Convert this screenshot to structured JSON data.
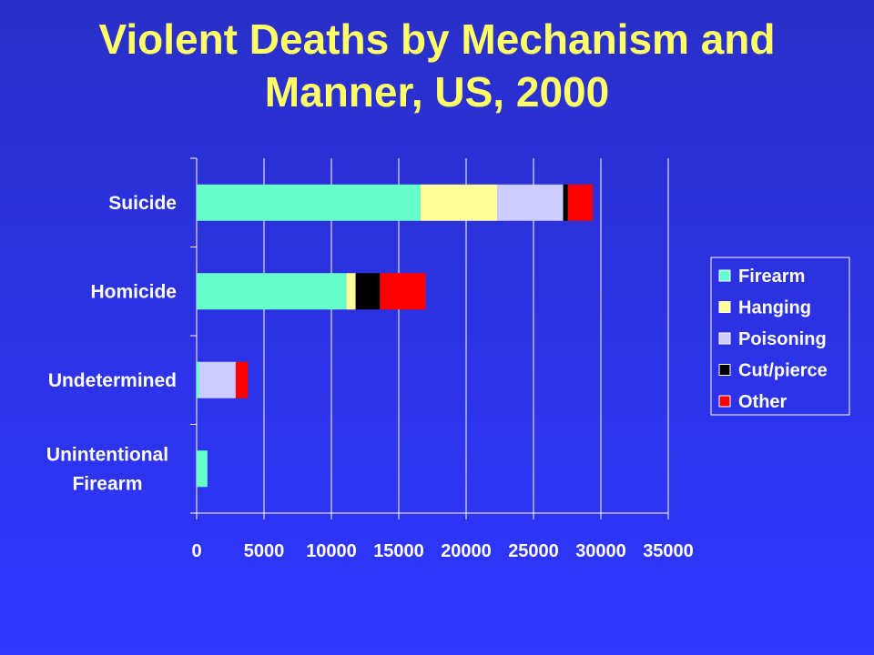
{
  "title": {
    "line1": "Violent Deaths by Mechanism and",
    "line2": "Manner, US, 2000"
  },
  "chart_data": {
    "type": "bar",
    "orientation": "horizontal",
    "stacked": true,
    "title": "Violent Deaths by Mechanism and Manner, US, 2000",
    "categories": [
      "Suicide",
      "Homicide",
      "Undetermined",
      "Unintentional Firearm"
    ],
    "category_lines": [
      [
        "Suicide"
      ],
      [
        "Homicide"
      ],
      [
        "Undetermined"
      ],
      [
        "Unintentional",
        "Firearm"
      ]
    ],
    "series": [
      {
        "name": "Firearm",
        "color": "#66ffcc",
        "values": [
          16600,
          11100,
          200,
          800
        ]
      },
      {
        "name": "Hanging",
        "color": "#ffff99",
        "values": [
          5700,
          700,
          0,
          0
        ]
      },
      {
        "name": "Poisoning",
        "color": "#ccccff",
        "values": [
          4900,
          0,
          2700,
          0
        ]
      },
      {
        "name": "Cut/pierce",
        "color": "#000000",
        "values": [
          350,
          1800,
          0,
          0
        ]
      },
      {
        "name": "Other",
        "color": "#ff0000",
        "values": [
          1850,
          3400,
          900,
          0
        ]
      }
    ],
    "xlim": [
      0,
      35000
    ],
    "ticks": [
      "0",
      "5000",
      "10000",
      "15000",
      "20000",
      "25000",
      "30000",
      "35000"
    ],
    "tick_values": [
      0,
      5000,
      10000,
      15000,
      20000,
      25000,
      30000,
      35000
    ],
    "xlabel": "",
    "ylabel": "",
    "grid": "vertical",
    "legend": "right"
  }
}
